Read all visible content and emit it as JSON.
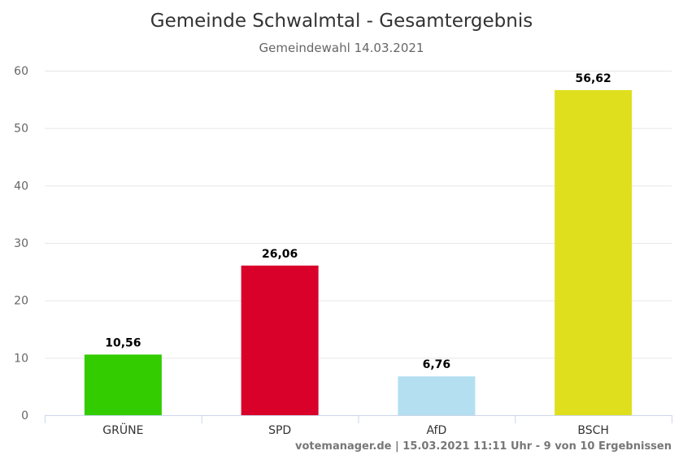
{
  "chart_data": {
    "type": "bar",
    "title": "Gemeinde Schwalmtal - Gesamtergebnis",
    "subtitle": "Gemeindewahl 14.03.2021",
    "categories": [
      "GRÜNE",
      "SPD",
      "AfD",
      "BSCH"
    ],
    "values": [
      10.56,
      26.06,
      6.76,
      56.62
    ],
    "value_labels": [
      "10,56",
      "26,06",
      "6,76",
      "56,62"
    ],
    "colors": [
      "#33cc00",
      "#d9002a",
      "#b3dff0",
      "#dfdf1e"
    ],
    "ylim": [
      0,
      60
    ],
    "yticks": [
      0,
      10,
      20,
      30,
      40,
      50,
      60
    ],
    "grid": true,
    "legend": "none"
  },
  "credits": "votemanager.de | 15.03.2021 11:11 Uhr - 9 von 10 Ergebnissen"
}
